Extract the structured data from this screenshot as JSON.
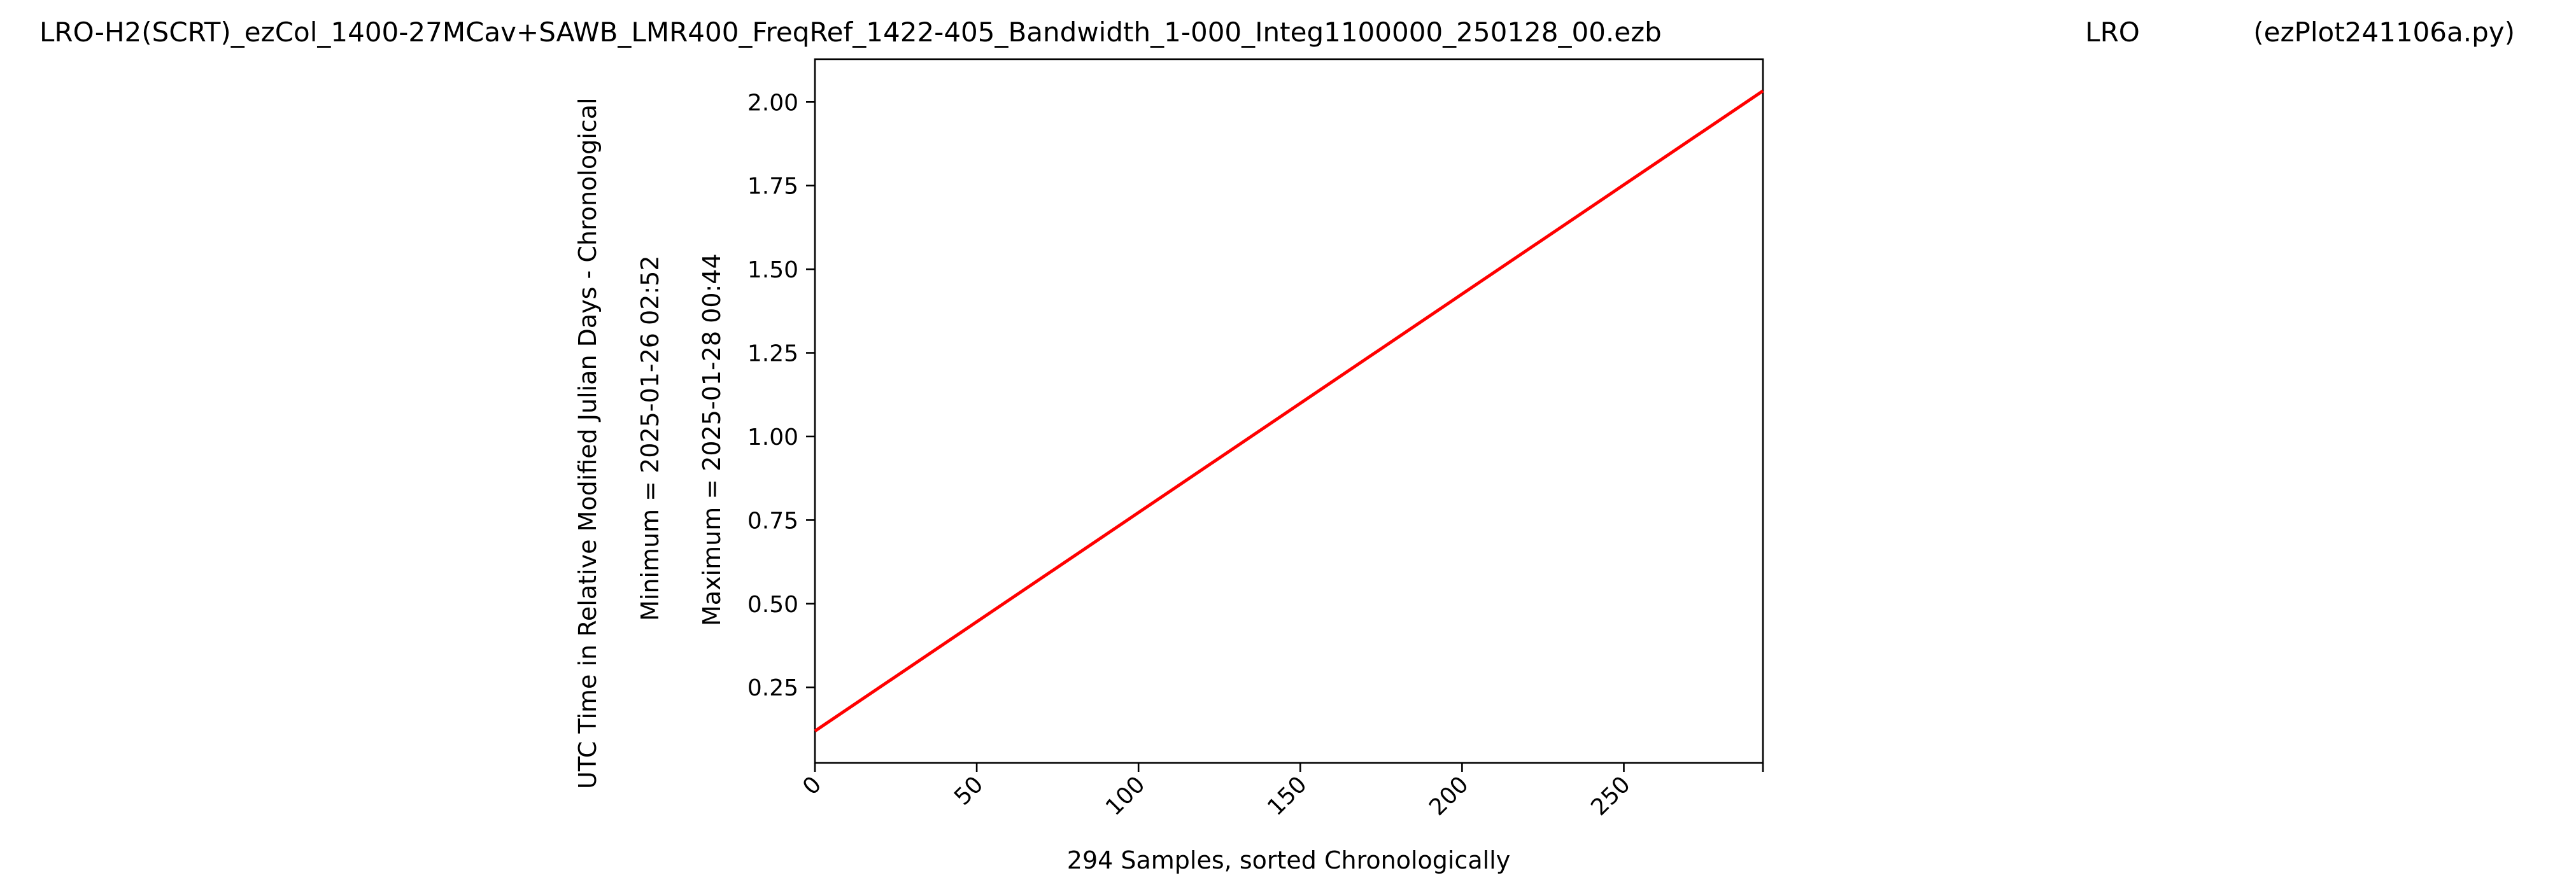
{
  "header": {
    "title_left": "LRO-H2(SCRT)_ezCol_1400-27MCav+SAWB_LMR400_FreqRef_1422-405_Bandwidth_1-000_Integ1100000_250128_00.ezb",
    "title_center": "LRO",
    "title_right": "(ezPlot241106a.py)"
  },
  "chart_data": {
    "type": "line",
    "title": "LRO-H2(SCRT)_ezCol_1400-27MCav+SAWB_LMR400_FreqRef_1422-405_Bandwidth_1-000_Integ1100000_250128_00.ezb",
    "xlabel": "294 Samples, sorted Chronologically",
    "ylabel": "UTC Time in Relative Modified Julian Days - Chronological",
    "ylabel_minimum": "Minimum = 2025-01-26   02:52",
    "ylabel_maximum": "Maximum = 2025-01-28   00:44",
    "xlim": [
      0,
      293
    ],
    "ylim": [
      0.024,
      2.128
    ],
    "x_ticks": [
      0,
      50,
      100,
      150,
      200,
      250
    ],
    "x_tick_labels": [
      "0",
      "50",
      "100",
      "150",
      "200",
      "250"
    ],
    "y_ticks": [
      0.25,
      0.5,
      0.75,
      1.0,
      1.25,
      1.5,
      1.75,
      2.0
    ],
    "y_tick_labels": [
      "0.25",
      "0.50",
      "0.75",
      "1.00",
      "1.25",
      "1.50",
      "1.75",
      "2.00"
    ],
    "grid": false,
    "series": [
      {
        "color": "#ff0000",
        "x": [
          0,
          293
        ],
        "values": [
          0.1194,
          2.0333
        ]
      }
    ]
  }
}
